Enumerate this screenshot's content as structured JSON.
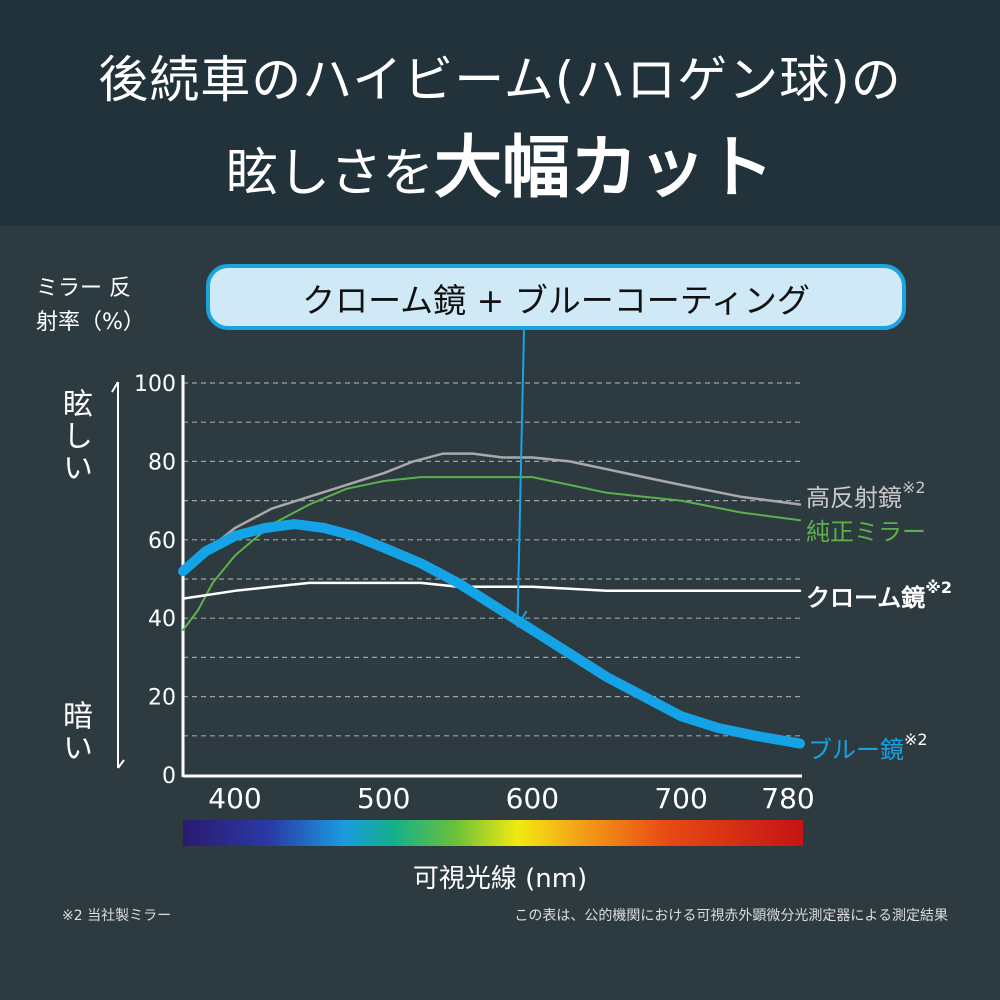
{
  "header": {
    "line1": "後続車のハイビーム(ハロゲン球)の",
    "line2_prefix": "眩しさを",
    "line2_emphasis": "大幅カット"
  },
  "callout": "クローム鏡 + ブルーコーティング",
  "side": {
    "bright": "眩しい",
    "dark": "暗い"
  },
  "footnotes": {
    "left": "※2 当社製ミラー",
    "right": "この表は、公的機関における可視赤外顕微分光測定器による測定結果"
  },
  "chart_data": {
    "type": "line",
    "title": "",
    "xlabel": "可視光線 (nm)",
    "ylabel": "ミラー 反射率（%）",
    "xlim": [
      365,
      780
    ],
    "ylim": [
      0,
      100
    ],
    "x_ticks": [
      "400",
      "500",
      "600",
      "700",
      "780"
    ],
    "y_ticks": [
      "0",
      "20",
      "40",
      "60",
      "80",
      "100"
    ],
    "grid": "horizontal dotted every 10",
    "series": [
      {
        "name": "高反射鏡",
        "suffix": "※2",
        "color": "#a9a9a9",
        "x": [
          365,
          380,
          400,
          425,
          450,
          475,
          500,
          520,
          540,
          560,
          580,
          600,
          625,
          650,
          675,
          700,
          740,
          780
        ],
        "y": [
          52,
          57,
          63,
          68,
          71,
          74,
          77,
          80,
          82,
          82,
          81,
          81,
          80,
          78,
          76,
          74,
          71,
          69
        ]
      },
      {
        "name": "純正ミラー",
        "suffix": "",
        "color": "#5cb14a",
        "x": [
          365,
          375,
          385,
          400,
          425,
          450,
          475,
          500,
          525,
          550,
          575,
          600,
          625,
          650,
          675,
          700,
          740,
          780
        ],
        "y": [
          37,
          42,
          49,
          56,
          64,
          69,
          73,
          75,
          76,
          76,
          76,
          76,
          74,
          72,
          71,
          70,
          67,
          65
        ]
      },
      {
        "name": "クローム鏡",
        "suffix": "※2",
        "color": "#ffffff",
        "x": [
          365,
          400,
          425,
          450,
          475,
          500,
          525,
          550,
          575,
          600,
          650,
          700,
          740,
          780
        ],
        "y": [
          45,
          47,
          48,
          49,
          49,
          49,
          49,
          48,
          48,
          48,
          47,
          47,
          47,
          47
        ]
      },
      {
        "name": "ブルー鏡",
        "suffix": "※2",
        "color": "#14a3e6",
        "x": [
          365,
          380,
          400,
          420,
          440,
          460,
          480,
          500,
          525,
          550,
          575,
          600,
          625,
          650,
          675,
          700,
          725,
          750,
          780
        ],
        "y": [
          52,
          57,
          61,
          63,
          64,
          63,
          61,
          58,
          54,
          49,
          43,
          37,
          31,
          25,
          20,
          15,
          12,
          10,
          8
        ]
      }
    ],
    "annotation": {
      "text": "クローム鏡 + ブルーコーティング",
      "arrow_to": {
        "x": 590,
        "y": 38
      }
    }
  }
}
